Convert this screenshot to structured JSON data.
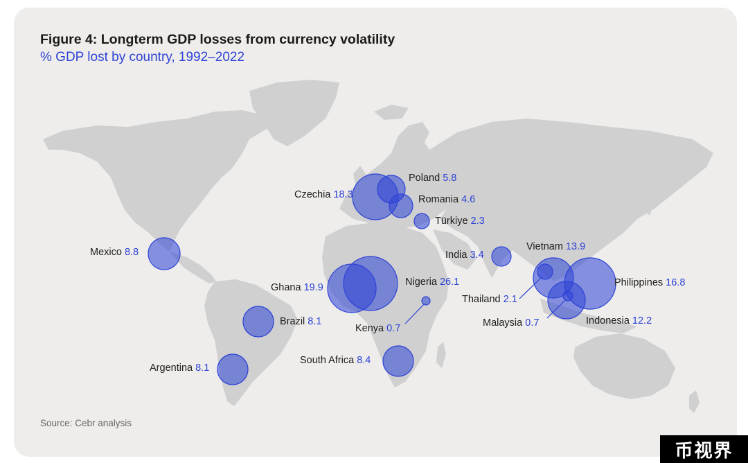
{
  "figure": {
    "title": "Figure 4: Longterm GDP losses from currency volatility",
    "subtitle": "% GDP lost by country, 1992–2022",
    "source": "Source: Cebr analysis"
  },
  "colors": {
    "bubble": "#2e43d6",
    "land": "#cfcfcf",
    "background": "#eeedeb",
    "accent_text": "#2e43d6"
  },
  "countries": [
    {
      "name": "Czechia",
      "value": "18.3"
    },
    {
      "name": "Poland",
      "value": "5.8"
    },
    {
      "name": "Romania",
      "value": "4.6"
    },
    {
      "name": "Türkiye",
      "value": "2.3"
    },
    {
      "name": "Mexico",
      "value": "8.8"
    },
    {
      "name": "India",
      "value": "3.4"
    },
    {
      "name": "Vietnam",
      "value": "13.9"
    },
    {
      "name": "Ghana",
      "value": "19.9"
    },
    {
      "name": "Nigeria",
      "value": "26.1"
    },
    {
      "name": "Philippines",
      "value": "16.8"
    },
    {
      "name": "Thailand",
      "value": "2.1"
    },
    {
      "name": "Kenya",
      "value": "0.7"
    },
    {
      "name": "Malaysia",
      "value": "0.7"
    },
    {
      "name": "Indonesia",
      "value": "12.2"
    },
    {
      "name": "Brazil",
      "value": "8.1"
    },
    {
      "name": "South Africa",
      "value": "8.4"
    },
    {
      "name": "Argentina",
      "value": "8.1"
    }
  ],
  "watermark": "币视界"
}
